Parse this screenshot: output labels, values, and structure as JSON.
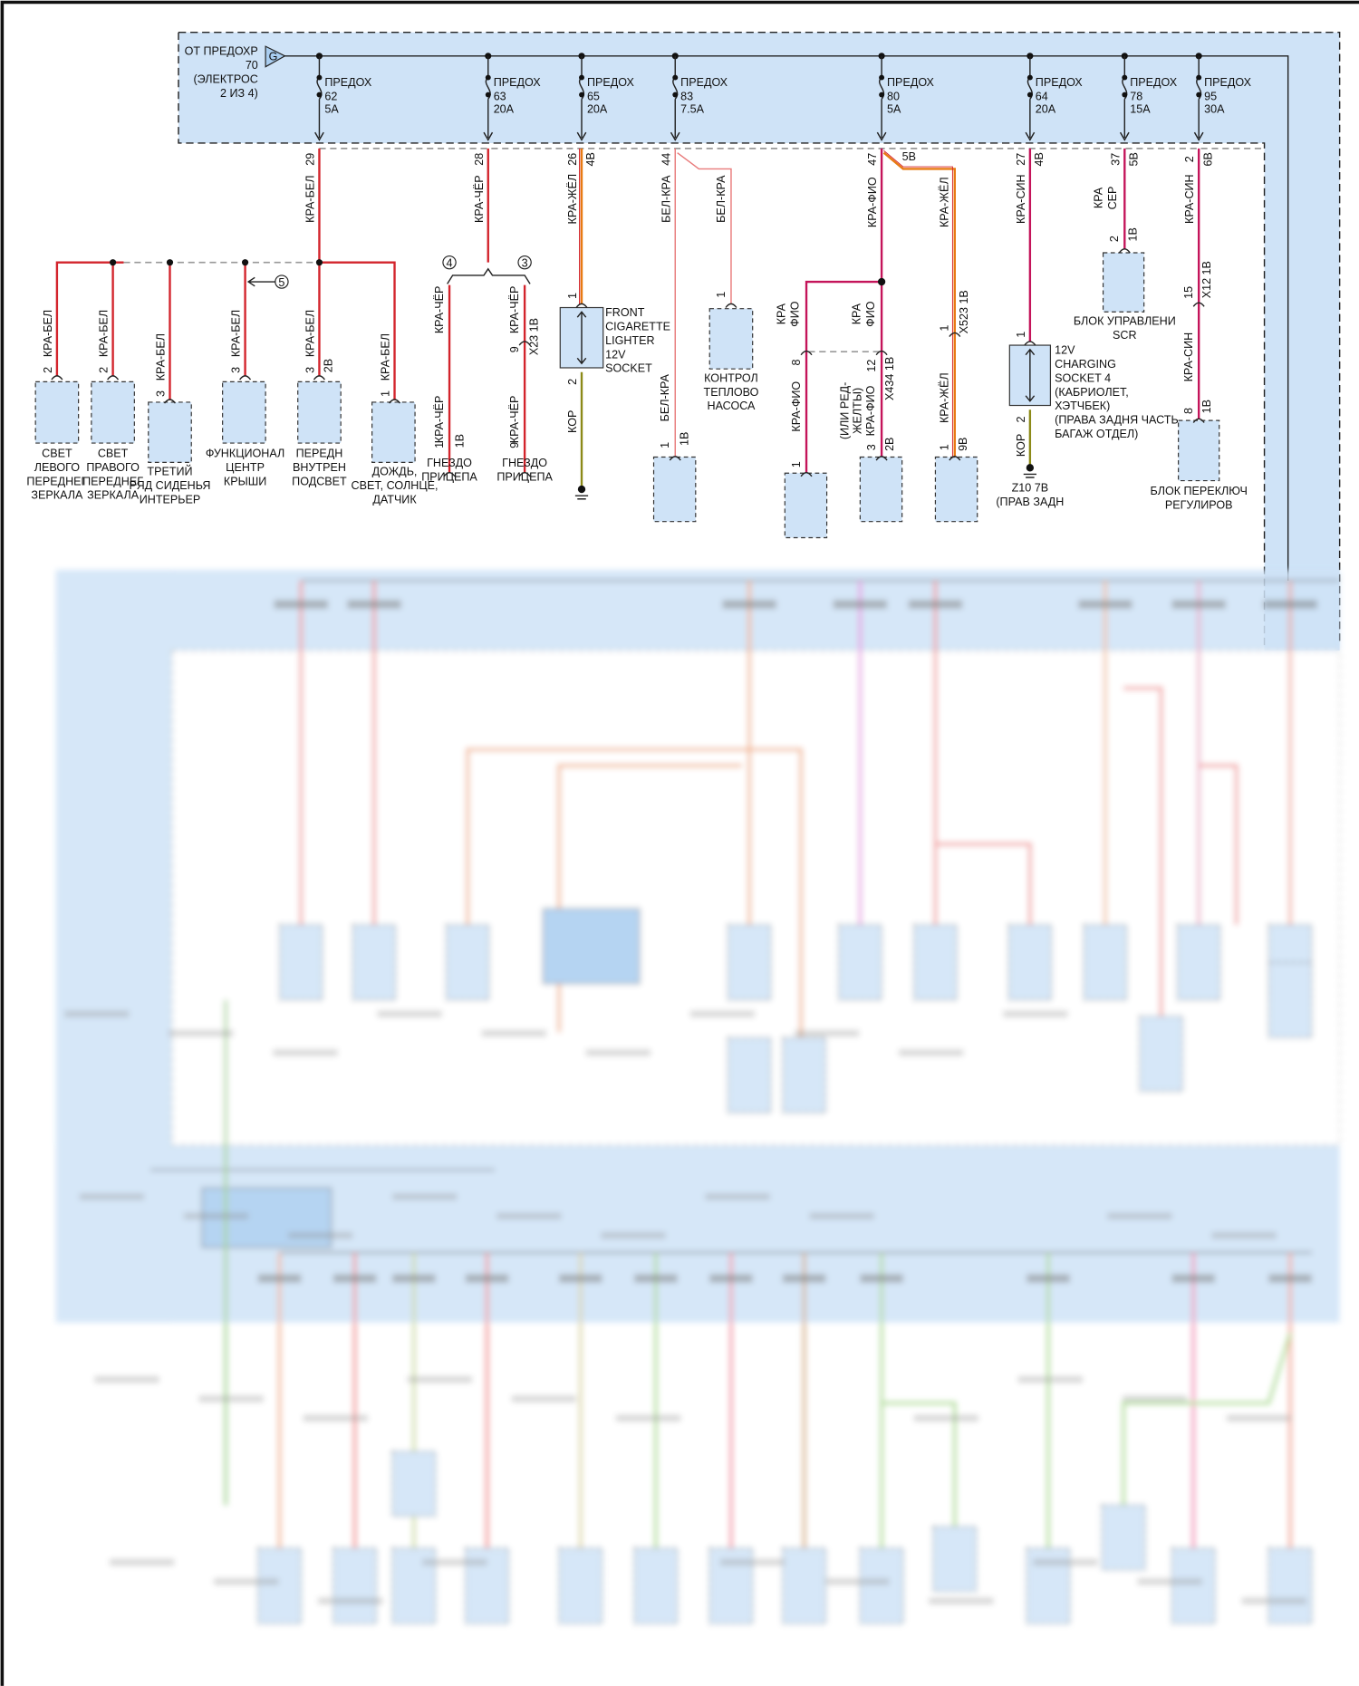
{
  "source": {
    "connector": "G",
    "lines": [
      "ОТ ПРЕДОХР",
      "70",
      "(ЭЛЕКТРОС",
      "2 ИЗ 4)"
    ]
  },
  "fuses": [
    {
      "label": "ПРЕДОХ",
      "number": "62",
      "rating": "5A"
    },
    {
      "label": "ПРЕДОХ",
      "number": "63",
      "rating": "20A"
    },
    {
      "label": "ПРЕДОХ",
      "number": "65",
      "rating": "20A"
    },
    {
      "label": "ПРЕДОХ",
      "number": "83",
      "rating": "7.5A"
    },
    {
      "label": "ПРЕДОХ",
      "number": "80",
      "rating": "5A"
    },
    {
      "label": "ПРЕДОХ",
      "number": "64",
      "rating": "20A"
    },
    {
      "label": "ПРЕДОХ",
      "number": "78",
      "rating": "15A"
    },
    {
      "label": "ПРЕДОХ",
      "number": "95",
      "rating": "30A"
    }
  ],
  "wires": {
    "f62": {
      "pin": "29",
      "color": "КРА-БЕЛ"
    },
    "f63": {
      "pin": "28",
      "color": "КРА-ЧЁР"
    },
    "f65": {
      "pin": "26",
      "sub": "4В",
      "color": "КРА-ЖЁЛ"
    },
    "f83": {
      "pin": "44",
      "color": "БЕЛ-КРА",
      "branch_color": "БЕЛ-КРА"
    },
    "f80": {
      "pin": "47",
      "sub": "5В",
      "color": "КРА-ФИО",
      "branch_color": "КРА-ЖЁЛ"
    },
    "f64": {
      "pin": "27",
      "sub": "4В",
      "color": "КРА-СИН"
    },
    "f78": {
      "pin": "37",
      "sub": "5В",
      "color1": "КРА",
      "color2": "СЕР"
    },
    "f95": {
      "pin": "2",
      "sub": "6В",
      "color": "КРА-СИН"
    },
    "splice_drop_color": "КРА-БЕЛ",
    "trailer": {
      "left_color": "КРА-ЧЁР",
      "right_color": "КРА-ЧЁР",
      "conn_pin": "9",
      "conn_name": "X23 1В",
      "left_pin": "1",
      "left_sub": "1В",
      "right_pin": "9"
    },
    "lighter": {
      "pin_in": "1",
      "pin_out": "2",
      "ground_color": "КОР"
    },
    "f83_drop": {
      "color": "БЕЛ-КРА",
      "pin": "1",
      "sub": "1В"
    },
    "pump_pin": "1",
    "f80_left": {
      "upper1": "КРА",
      "upper2": "ФИО",
      "conn_pin": "8",
      "lower": "КРА-ФИО",
      "pin": "1"
    },
    "f80_right": {
      "upper1": "КРА",
      "upper2": "ФИО",
      "conn_pin": "12",
      "conn_name": "X434 1В",
      "lower1": "(ИЛИ РЕД-",
      "lower2": "ЖЕЛТЫ)",
      "lower3": "КРА-ФИО",
      "pin": "3",
      "sub": "2В"
    },
    "f80_yellow": {
      "conn_pin": "1",
      "conn_name": "X523 1В",
      "lower": "КРА-ЖЁЛ",
      "pin": "1",
      "sub": "9В"
    },
    "charging": {
      "pin_in": "1",
      "pin_out": "2",
      "ground_color": "КОР",
      "ground": "Z10 7В",
      "ground_loc": "(ПРАВ ЗАДН"
    },
    "scr": {
      "pin": "2",
      "sub": "1В"
    },
    "f95_drop": {
      "conn_pin": "15",
      "conn_name": "X12 1В",
      "lower": "КРА-СИН",
      "pin": "8",
      "sub": "1В"
    },
    "splice_pins": [
      "2",
      "2",
      "3",
      "3",
      "3",
      "1"
    ],
    "splice_sub": "2В",
    "callouts": [
      "5",
      "4",
      "3"
    ]
  },
  "components": [
    {
      "lines": [
        "СВЕТ",
        "ЛЕВОГО",
        "ПЕРЕДНЕГ",
        "ЗЕРКАЛА"
      ]
    },
    {
      "lines": [
        "СВЕТ",
        "ПРАВОГО",
        "ПЕРЕДНЕГ",
        "ЗЕРКАЛА"
      ]
    },
    {
      "lines": [
        "ТРЕТИЙ",
        "РЯД СИДЕНЬЯ",
        "ИНТЕРЬЕР"
      ]
    },
    {
      "lines": [
        "ФУНКЦИОНАЛ",
        "ЦЕНТР",
        "КРЫШИ"
      ]
    },
    {
      "lines": [
        "ПЕРЕДН",
        "ВНУТРЕН",
        "ПОДСВЕТ"
      ]
    },
    {
      "lines": [
        "ДОЖДЬ,",
        "СВЕТ, СОЛНЦЕ,",
        "ДАТЧИК"
      ]
    },
    {
      "lines": [
        "ГНЕЗДО",
        "ПРИЦЕПА"
      ]
    },
    {
      "lines": [
        "ГНЕЗДО",
        "ПРИЦЕПА"
      ]
    },
    {
      "lines": [
        "FRONT",
        "CIGARETTE",
        "LIGHTER",
        "12V",
        "SOCKET"
      ]
    },
    {
      "lines": [
        "КОНТРОЛ",
        "ТЕПЛОВО",
        "НАСОСА"
      ]
    },
    {
      "lines": [
        "12V",
        "CHARGING",
        "SOCKET 4",
        "(КАБРИОЛЕТ,",
        "ХЭТЧБЕК)",
        "(ПРАВА ЗАДНЯ ЧАСТЬ",
        "БАГАЖ ОТДЕЛ)"
      ]
    },
    {
      "lines": [
        "БЛОК УПРАВЛЕНИ",
        "SCR"
      ]
    },
    {
      "lines": [
        "БЛОК ПЕРЕКЛЮЧ",
        "РЕГУЛИРОВ"
      ]
    }
  ],
  "colors": {
    "panel": "#cfe3f7",
    "red": "#d3242c",
    "magenta": "#c4145a",
    "orange": "#e87a12",
    "olive": "#8c8a18"
  }
}
